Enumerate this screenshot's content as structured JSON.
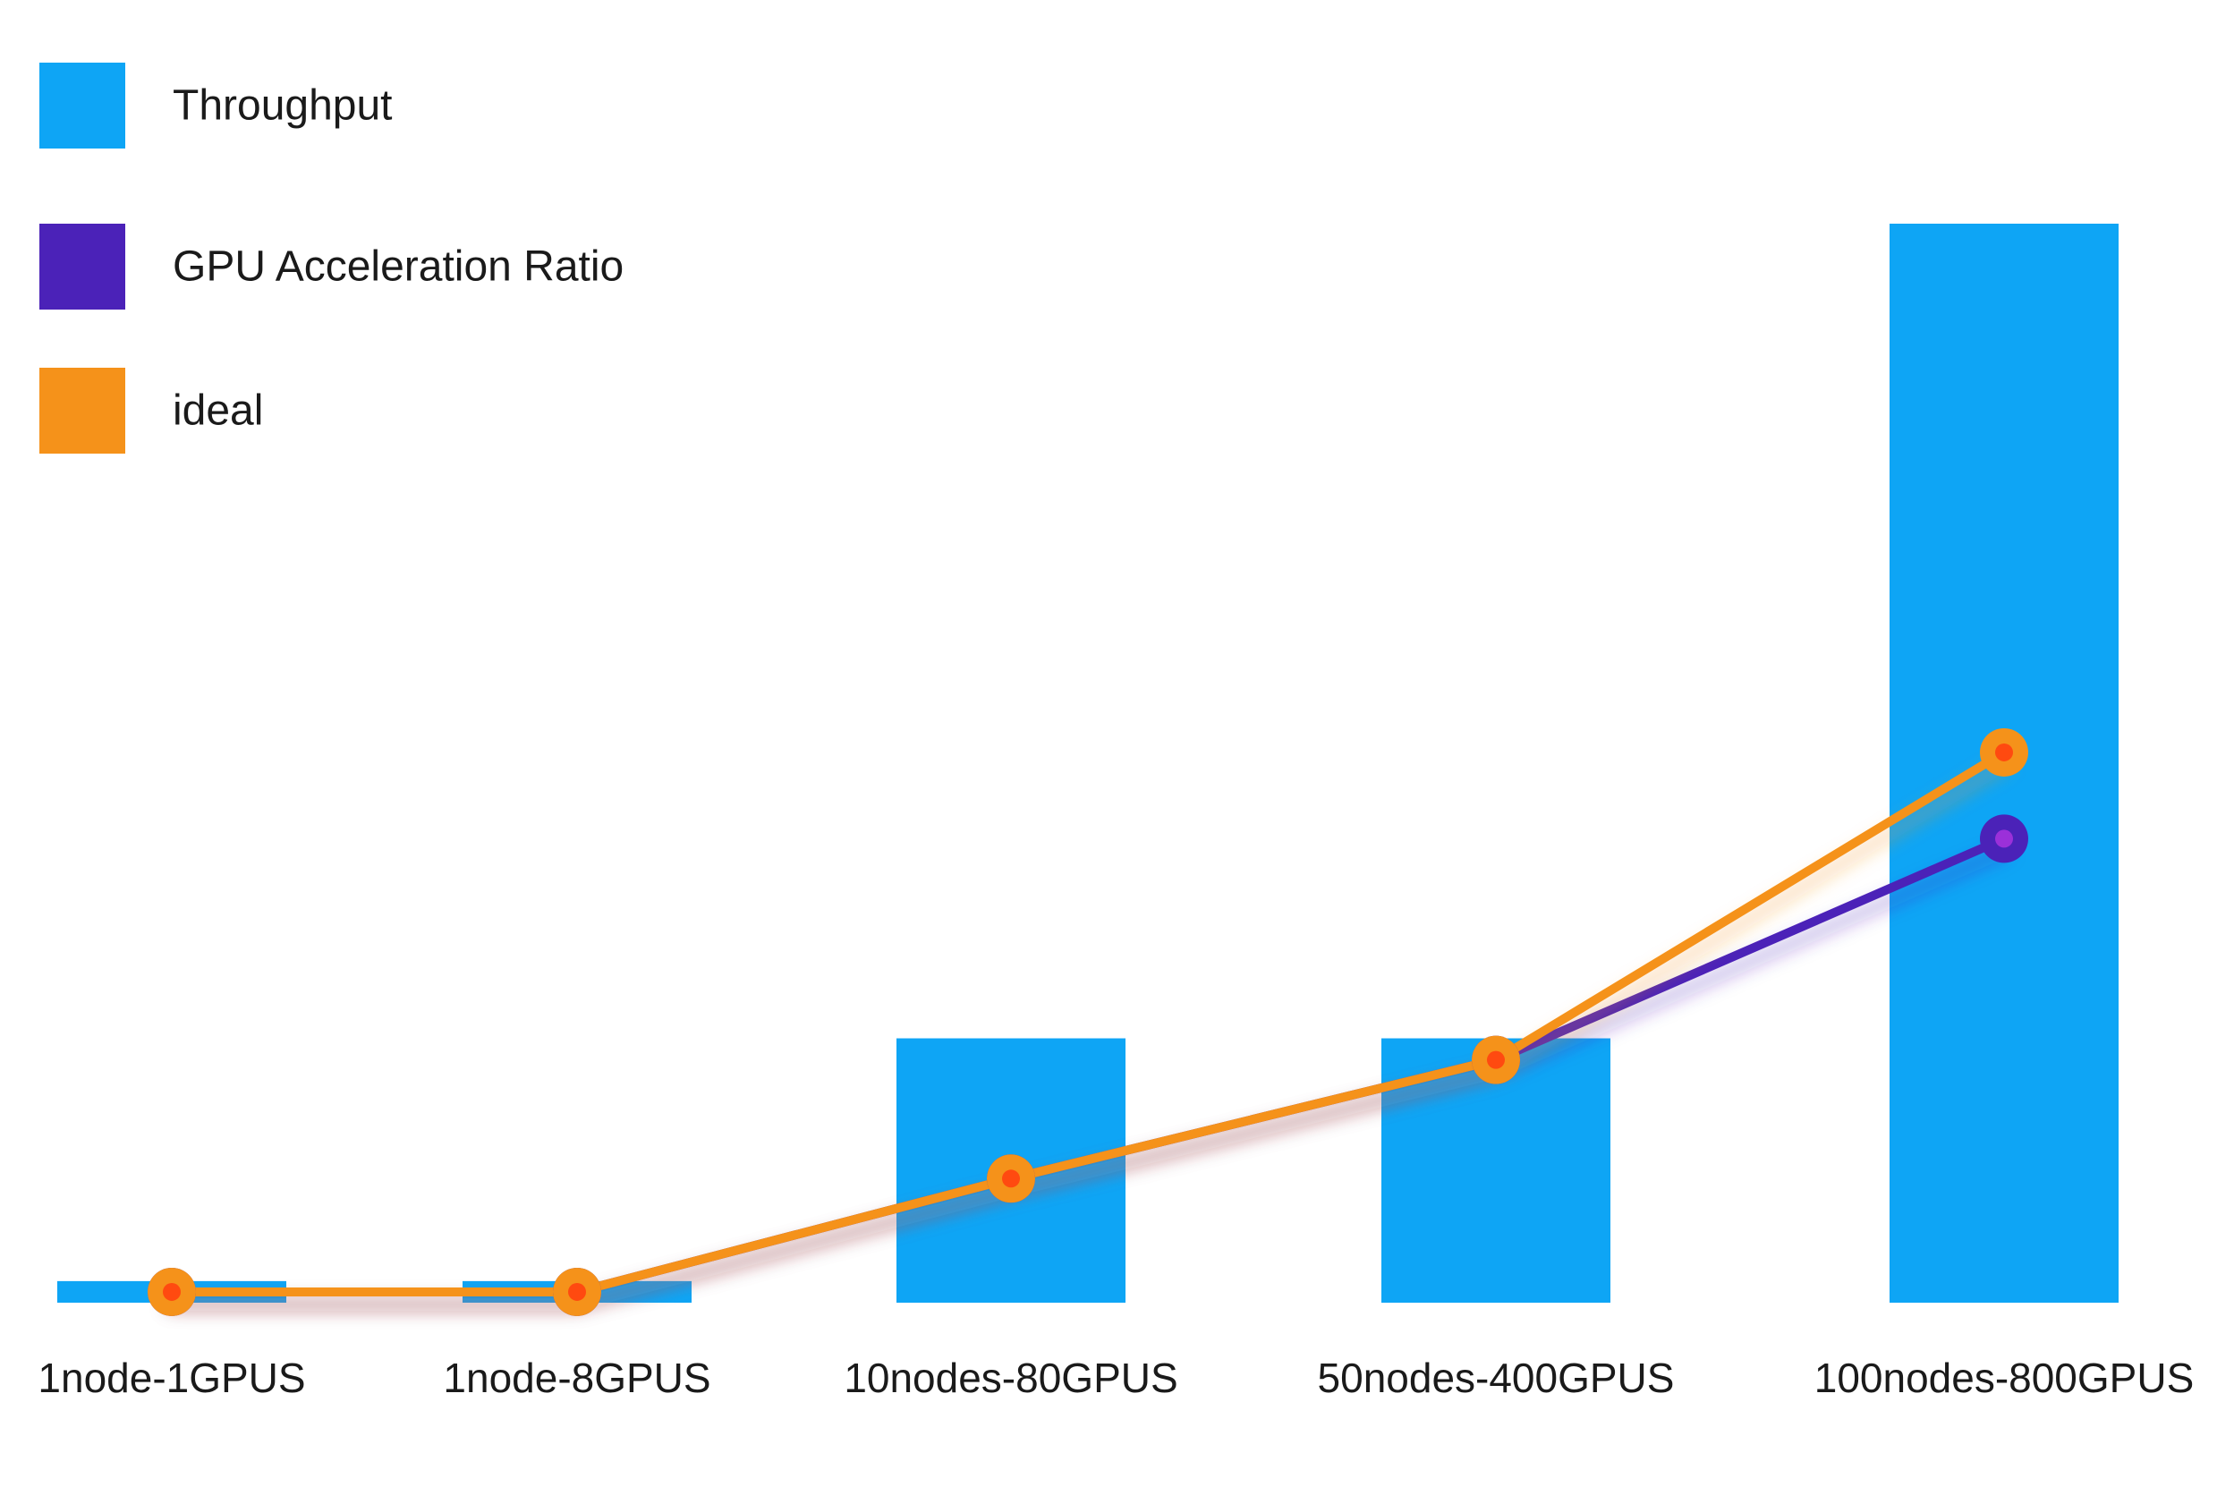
{
  "chart_data": {
    "type": "bar",
    "categories": [
      "1node-1GPUS",
      "1node-8GPUS",
      "10nodes-80GPUS",
      "50nodes-400GPUS",
      "100nodes-800GPUS"
    ],
    "ylim": [
      0,
      100
    ],
    "grid": false,
    "legend_placement": "top-left",
    "series": [
      {
        "name": "Throughput",
        "type": "bar",
        "color": "#0ea5f5",
        "values": [
          2,
          2,
          24.5,
          24.5,
          100
        ]
      },
      {
        "name": "GPU Acceleration Ratio",
        "type": "line",
        "color": "#4b22b8",
        "values": [
          1,
          1,
          11.5,
          22.5,
          43
        ]
      },
      {
        "name": "ideal",
        "type": "line",
        "color": "#f5921a",
        "values": [
          1,
          1,
          11.5,
          22.5,
          51
        ]
      }
    ]
  }
}
